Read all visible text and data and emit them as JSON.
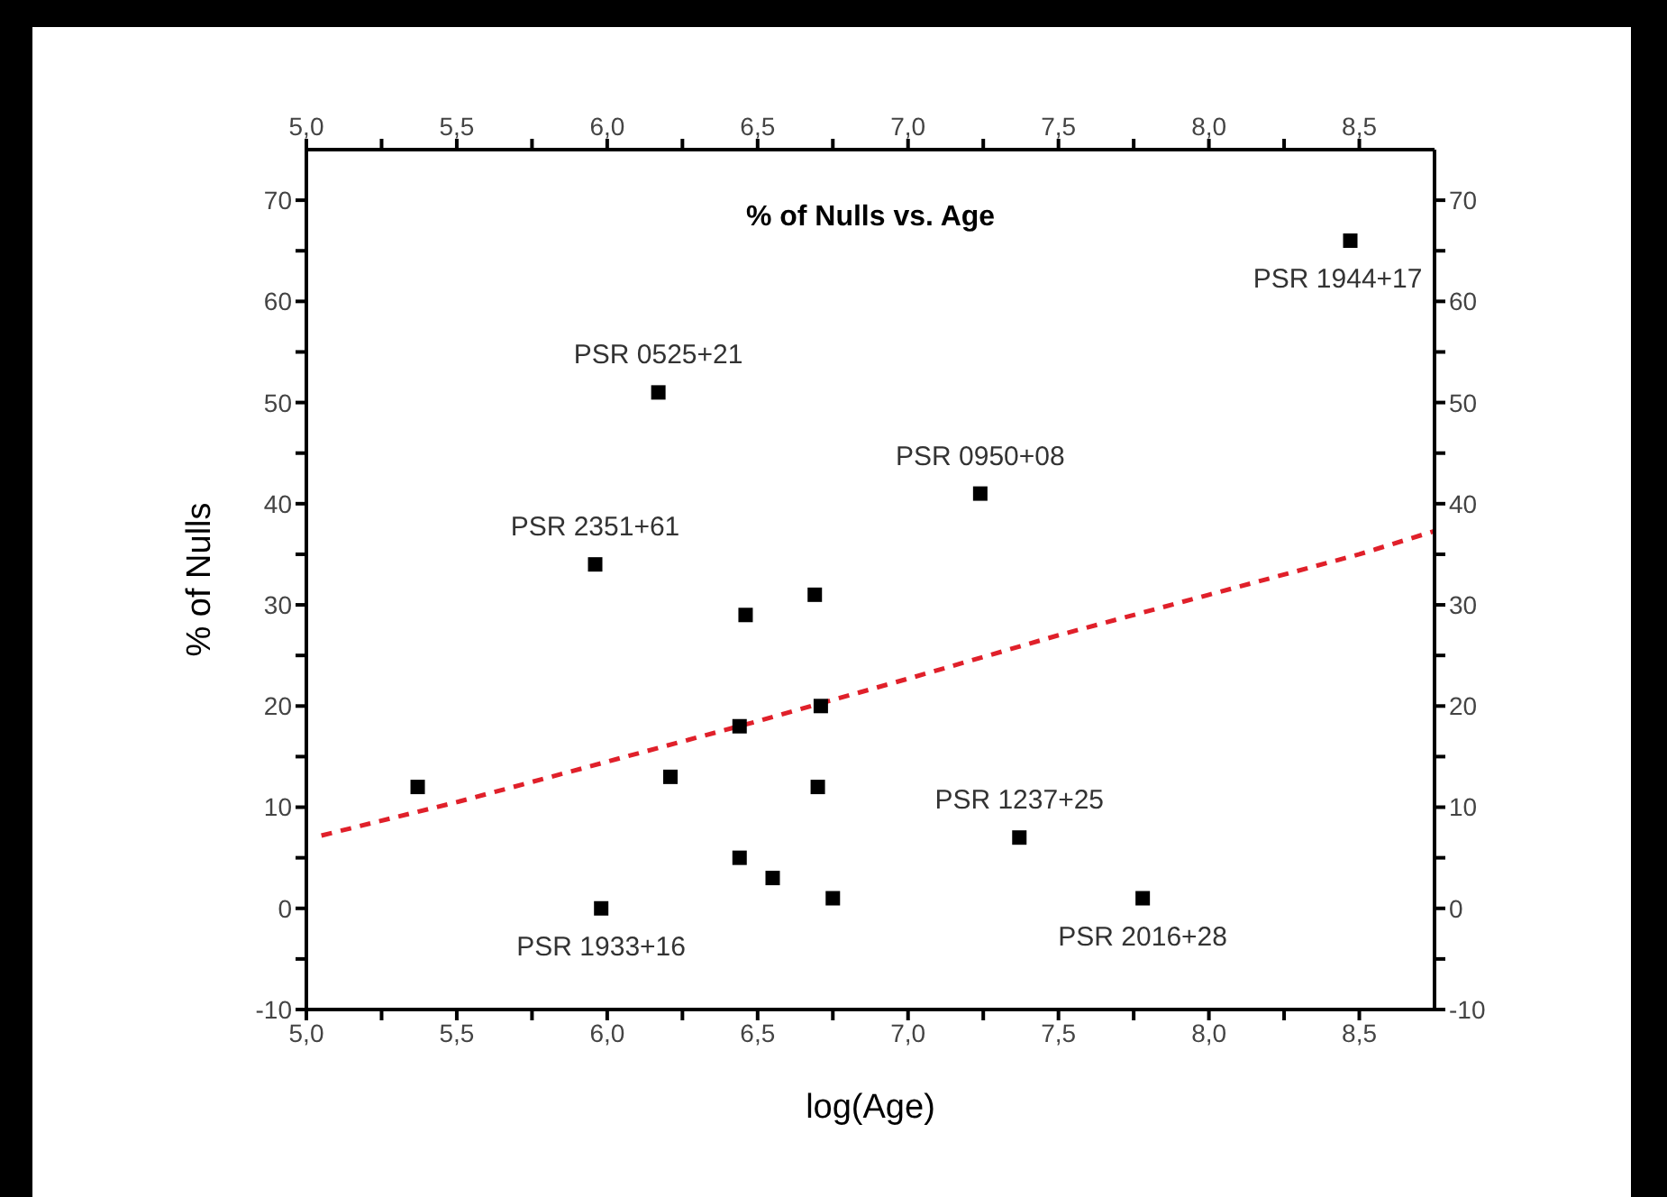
{
  "chart_data": {
    "type": "scatter",
    "title": "% of Nulls vs. Age",
    "xlabel": "log(Age)",
    "ylabel": "% of Nulls",
    "xlim": [
      5,
      8.75
    ],
    "ylim": [
      -10,
      75
    ],
    "xticks": [
      {
        "value": 5,
        "label": "5,0"
      },
      {
        "value": 5.25,
        "label": null
      },
      {
        "value": 5.5,
        "label": "5,5"
      },
      {
        "value": 5.75,
        "label": null
      },
      {
        "value": 6,
        "label": "6,0"
      },
      {
        "value": 6.25,
        "label": null
      },
      {
        "value": 6.5,
        "label": "6,5"
      },
      {
        "value": 6.75,
        "label": null
      },
      {
        "value": 7,
        "label": "7,0"
      },
      {
        "value": 7.25,
        "label": null
      },
      {
        "value": 7.5,
        "label": "7,5"
      },
      {
        "value": 7.75,
        "label": null
      },
      {
        "value": 8,
        "label": "8,0"
      },
      {
        "value": 8.25,
        "label": null
      },
      {
        "value": 8.5,
        "label": "8,5"
      }
    ],
    "x2lim": [
      5,
      8.75
    ],
    "x2ticks": [
      {
        "value": 5,
        "label": "5,0"
      },
      {
        "value": 5.25,
        "label": null
      },
      {
        "value": 5.5,
        "label": "5,5"
      },
      {
        "value": 5.75,
        "label": null
      },
      {
        "value": 6,
        "label": "6,0"
      },
      {
        "value": 6.25,
        "label": null
      },
      {
        "value": 6.5,
        "label": "6,5"
      },
      {
        "value": 6.75,
        "label": null
      },
      {
        "value": 7,
        "label": "7,0"
      },
      {
        "value": 7.25,
        "label": null
      },
      {
        "value": 7.5,
        "label": "7,5"
      },
      {
        "value": 7.75,
        "label": null
      },
      {
        "value": 8,
        "label": "8,0"
      },
      {
        "value": 8.25,
        "label": null
      },
      {
        "value": 8.5,
        "label": "8,5"
      }
    ],
    "yticks": [
      -10,
      {
        "value": -5,
        "label": null
      },
      0,
      {
        "value": 5,
        "label": null
      },
      10,
      {
        "value": 15,
        "label": null
      },
      20,
      {
        "value": 25,
        "label": null
      },
      30,
      {
        "value": 35,
        "label": null
      },
      40,
      {
        "value": 45,
        "label": null
      },
      50,
      {
        "value": 55,
        "label": null
      },
      60,
      {
        "value": 65,
        "label": null
      },
      70
    ],
    "y2lim": [
      -10,
      75
    ],
    "y2ticks": [
      -10,
      {
        "value": -5,
        "label": null
      },
      0,
      {
        "value": 5,
        "label": null
      },
      10,
      {
        "value": 15,
        "label": null
      },
      20,
      {
        "value": 25,
        "label": null
      },
      30,
      {
        "value": 35,
        "label": null
      },
      40,
      {
        "value": 45,
        "label": null
      },
      50,
      {
        "value": 55,
        "label": null
      },
      60,
      {
        "value": 65,
        "label": null
      },
      70
    ],
    "marker": "square",
    "series": [
      {
        "color": "#000000",
        "x": [
          5.37,
          5.96,
          5.98,
          6.17,
          6.21,
          6.44,
          6.46,
          6.44,
          6.55,
          6.69,
          6.71,
          6.7,
          6.75,
          7.24,
          7.37,
          7.78,
          8.47
        ],
        "values": [
          12,
          34,
          0,
          51,
          13,
          18,
          29,
          5,
          3,
          31,
          20,
          12,
          1,
          41,
          7,
          1,
          66
        ]
      },
      {
        "type": "line",
        "color": "#e0202a",
        "line_style": "dashed",
        "marker": "none",
        "x": [
          5.05,
          5.5,
          6,
          6.5,
          7,
          7.5,
          8,
          8.5,
          8.75
        ],
        "values": [
          7.2,
          10.5,
          14.5,
          18.5,
          22.7,
          27,
          31,
          35,
          37.3
        ]
      }
    ],
    "annotations": [
      {
        "text": "PSR 0525+21",
        "x": 6.17,
        "y": 51
      },
      {
        "text": "PSR 2351+61",
        "x": 5.96,
        "y": 34
      },
      {
        "text": "PSR 1933+16",
        "x": 5.98,
        "y": 0
      },
      {
        "text": "PSR 0950+08",
        "x": 7.24,
        "y": 41
      },
      {
        "text": "PSR 1237+25",
        "x": 7.37,
        "y": 7
      },
      {
        "text": "PSR 2016+28",
        "x": 7.78,
        "y": 1
      },
      {
        "text": "PSR 1944+17",
        "x": 8.47,
        "y": 66
      }
    ]
  }
}
